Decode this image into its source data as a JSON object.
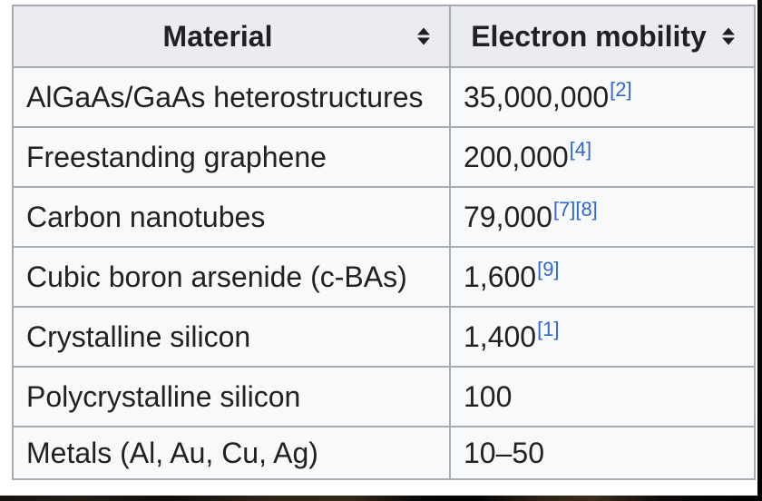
{
  "colors": {
    "header-bg": "#eaecf0",
    "row-bg": "#f8f9fa",
    "border": "#a7acb3",
    "text": "#202122",
    "link": "#3366cc"
  },
  "table": {
    "columns": [
      {
        "label": "Material",
        "sortable": true
      },
      {
        "label": "Electron mobility",
        "sortable": true
      }
    ],
    "rows": [
      {
        "material": "AlGaAs/GaAs heterostructures",
        "value": "35,000,000",
        "refs": "[2]"
      },
      {
        "material": "Freestanding graphene",
        "value": "200,000",
        "refs": "[4]"
      },
      {
        "material": "Carbon nanotubes",
        "value": "79,000",
        "refs": "[7][8]"
      },
      {
        "material": "Cubic boron arsenide (c-BAs)",
        "value": "1,600",
        "refs": "[9]"
      },
      {
        "material": "Crystalline silicon",
        "value": "1,400",
        "refs": "[1]"
      },
      {
        "material": "Polycrystalline silicon",
        "value": "100",
        "refs": ""
      },
      {
        "material": "Metals (Al, Au, Cu, Ag)",
        "value": "10–50",
        "refs": ""
      }
    ]
  }
}
